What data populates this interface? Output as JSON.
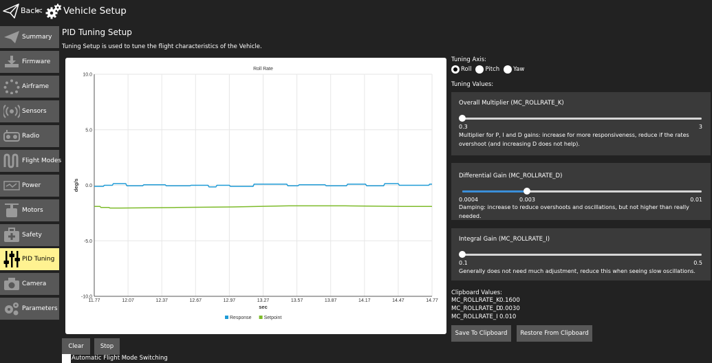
{
  "topbar": {
    "back_label": "Back",
    "separator": "<",
    "title": "Vehicle Setup"
  },
  "sidebar": {
    "items": [
      {
        "label": "Summary",
        "icon": "paper-plane-icon",
        "active": false
      },
      {
        "label": "Firmware",
        "icon": "download-icon",
        "active": false
      },
      {
        "label": "Airframe",
        "icon": "airframe-icon",
        "active": false
      },
      {
        "label": "Sensors",
        "icon": "radio-waves-icon",
        "active": false
      },
      {
        "label": "Radio",
        "icon": "radio-controller-icon",
        "active": false
      },
      {
        "label": "Flight Modes",
        "icon": "flight-modes-icon",
        "active": false
      },
      {
        "label": "Power",
        "icon": "power-icon",
        "active": false
      },
      {
        "label": "Motors",
        "icon": "motor-icon",
        "active": false
      },
      {
        "label": "Safety",
        "icon": "first-aid-icon",
        "active": false
      },
      {
        "label": "PID Tuning",
        "icon": "sliders-icon",
        "active": true
      },
      {
        "label": "Camera",
        "icon": "camera-icon",
        "active": false
      },
      {
        "label": "Parameters",
        "icon": "gears-icon",
        "active": false
      }
    ]
  },
  "page": {
    "title": "PID Tuning Setup",
    "description": "Tuning Setup is used to tune the flight characteristics of the Vehicle."
  },
  "chart_data": {
    "type": "line",
    "title": "Roll Rate",
    "xlabel": "sec",
    "ylabel": "deg/s",
    "xlim": [
      11.77,
      14.77
    ],
    "ylim": [
      -10,
      10
    ],
    "xticks": [
      "11.77",
      "12.07",
      "12.37",
      "12.67",
      "12.97",
      "13.27",
      "13.57",
      "13.87",
      "14.17",
      "14.47",
      "14.77"
    ],
    "yticks": [
      "10.0",
      "5.0",
      "0.0",
      "-5.0",
      "-10.0"
    ],
    "grid": true,
    "legend_position": "bottom",
    "series": [
      {
        "name": "Response",
        "color": "#1f9bd6",
        "x": [
          11.77,
          11.85,
          11.86,
          11.93,
          11.94,
          12.05,
          12.06,
          12.2,
          12.21,
          12.4,
          12.41,
          12.62,
          12.63,
          12.78,
          12.79,
          12.85,
          12.86,
          12.97,
          12.98,
          13.18,
          13.19,
          13.48,
          13.49,
          13.58,
          13.59,
          13.82,
          13.83,
          14.01,
          14.02,
          14.18,
          14.19,
          14.34,
          14.35,
          14.47,
          14.48,
          14.74,
          14.75,
          14.77
        ],
        "y": [
          -0.1,
          -0.1,
          0.0,
          0.0,
          0.15,
          0.15,
          -0.05,
          -0.05,
          0.05,
          0.05,
          -0.05,
          -0.05,
          0.0,
          0.0,
          -0.15,
          -0.15,
          0.0,
          0.0,
          -0.1,
          -0.1,
          0.1,
          0.1,
          -0.05,
          -0.05,
          0.05,
          0.05,
          -0.05,
          -0.05,
          0.1,
          0.1,
          -0.05,
          -0.05,
          0.15,
          0.15,
          0.0,
          0.0,
          0.1,
          0.1
        ]
      },
      {
        "name": "Setpoint",
        "color": "#7dbb2a",
        "x": [
          11.77,
          11.82,
          11.83,
          11.9,
          11.91,
          12.0,
          12.5,
          13.0,
          13.5,
          14.0,
          14.5,
          14.77
        ],
        "y": [
          -1.9,
          -1.9,
          -2.0,
          -2.0,
          -2.05,
          -2.05,
          -2.0,
          -1.95,
          -1.85,
          -1.85,
          -1.9,
          -1.9
        ]
      }
    ]
  },
  "controls": {
    "clear_label": "Clear",
    "stop_label": "Stop",
    "auto_switch_label": "Automatic Flight Mode Switching"
  },
  "tuning": {
    "axis_label": "Tuning Axis:",
    "axes": [
      {
        "label": "Roll",
        "checked": true
      },
      {
        "label": "Pitch",
        "checked": false
      },
      {
        "label": "Yaw",
        "checked": false
      }
    ],
    "values_label": "Tuning Values:",
    "params": [
      {
        "title": "Overall Multiplier (MC_ROLLRATE_K)",
        "min": "0.3",
        "max": "3",
        "level": 0.0,
        "description": "Multiplier for P, I and D gains: increase for more responsiveness, reduce if the rates overshoot (and increasing D does not help)."
      },
      {
        "title": "Differential Gain (MC_ROLLRATE_D)",
        "min": "0.0004",
        "max": "0.01",
        "level": 0.27,
        "mid": "0.003",
        "description": "Damping: increase to reduce overshoots and oscillations, but not higher than really needed."
      },
      {
        "title": "Integral Gain (MC_ROLLRATE_I)",
        "min": "0.1",
        "max": "0.5",
        "level": 0.0,
        "description": "Generally does not need much adjustment, reduce this when seeing slow oscillations."
      }
    ]
  },
  "clipboard": {
    "title": "Clipboard Values:",
    "rows": [
      {
        "name": "MC_ROLLRATE_K",
        "value": "0.1600"
      },
      {
        "name": "MC_ROLLRATE_D",
        "value": "0.0030"
      },
      {
        "name": "MC_ROLLRATE_I",
        "value": "0.010"
      }
    ],
    "save_label": "Save To Clipboard",
    "restore_label": "Restore From Clipboard"
  }
}
